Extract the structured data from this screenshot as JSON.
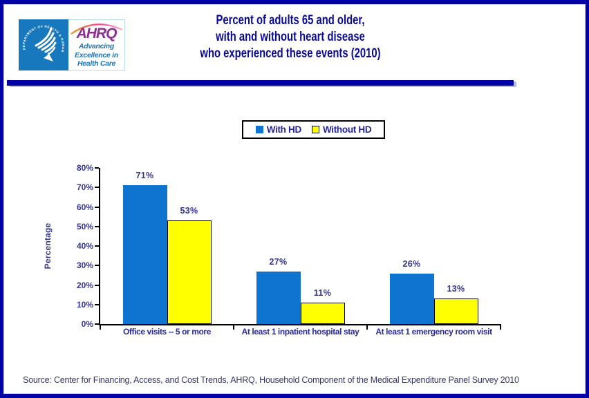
{
  "header": {
    "hhs_seal_text": "DEPARTMENT OF HEALTH & HUMAN SERVICES • USA",
    "ahrq_logo": {
      "acronym": "AHRQ",
      "tagline_lines": [
        "Advancing",
        "Excellence in",
        "Health Care"
      ]
    },
    "title_lines": [
      "Percent of adults 65 and older,",
      "with and without heart disease",
      "who experienced these events (2010)"
    ]
  },
  "chart_data": {
    "type": "bar",
    "title": "Percent of adults 65 and older, with and without heart disease who experienced these events (2010)",
    "categories": [
      "Office visits -- 5 or more",
      "At least 1 inpatient hospital stay",
      "At least 1 emergency room visit"
    ],
    "series": [
      {
        "name": "With HD",
        "color": "#0f73d0",
        "outline": null,
        "values": [
          71,
          27,
          26
        ]
      },
      {
        "name": "Without HD",
        "color": "#ffff00",
        "outline": "#000000",
        "values": [
          53,
          11,
          13
        ]
      }
    ],
    "xlabel": "",
    "ylabel": "Percentage",
    "ylim": [
      0,
      80
    ],
    "ytick_step": 10,
    "ytick_suffix": "%",
    "value_label_suffix": "%",
    "grid": false,
    "legend_position": "top-center"
  },
  "colors": {
    "page_border": "#0101a6",
    "divider_bar": "#0101a6",
    "title_text": "#0a0a99",
    "chart_text": "#333399",
    "hhs_logo_blue": "#1878be",
    "ahrq_purple": "#8e2e94",
    "ahrq_blue": "#1b75bc"
  },
  "footer": {
    "source_text": "Source: Center for Financing, Access, and Cost Trends, AHRQ, Household Component of the Medical Expenditure Panel Survey 2010"
  }
}
